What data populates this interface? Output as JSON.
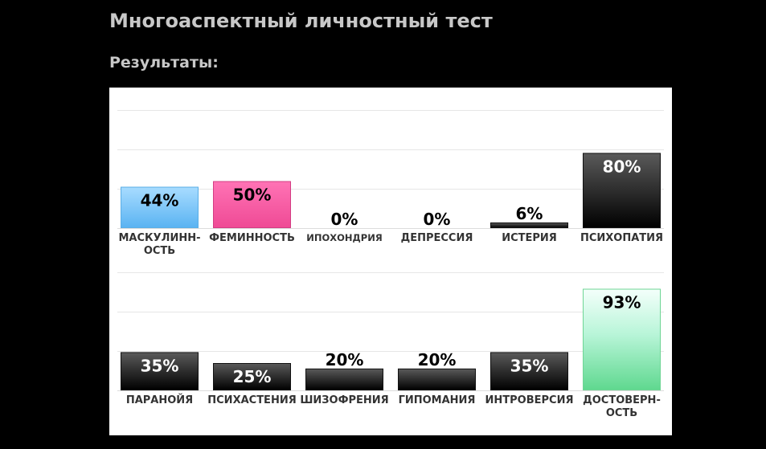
{
  "page": {
    "title": "Многоаспектный личностный тест",
    "subtitle": "Результаты:"
  },
  "chart_data": {
    "type": "bar",
    "rows": [
      {
        "categories": [
          [
            "МАСКУЛИНН-",
            "ОСТЬ"
          ],
          [
            "ФЕМИННОСТЬ"
          ],
          [
            "ИПОХОНДРИЯ"
          ],
          [
            "ДЕПРЕССИЯ"
          ],
          [
            "ИСТЕРИЯ"
          ],
          [
            "ПСИХОПАТИЯ"
          ]
        ],
        "values": [
          44,
          50,
          0,
          0,
          6,
          80
        ],
        "labels": [
          "44%",
          "50%",
          "0%",
          "0%",
          "6%",
          "80%"
        ],
        "styles": [
          "blue",
          "pink",
          "dark",
          "dark",
          "dark",
          "dark"
        ]
      },
      {
        "categories": [
          [
            "ПАРАНОЙЯ"
          ],
          [
            "ПСИХАСТЕНИЯ"
          ],
          [
            "ШИЗОФРЕНИЯ"
          ],
          [
            "ГИПОМАНИЯ"
          ],
          [
            "ИНТРОВЕРСИЯ"
          ],
          [
            "ДОСТОВЕРН-",
            "ОСТЬ"
          ]
        ],
        "values": [
          35,
          25,
          20,
          20,
          35,
          93
        ],
        "labels": [
          "35%",
          "25%",
          "20%",
          "20%",
          "35%",
          "93%"
        ],
        "styles": [
          "dark",
          "dark",
          "dark",
          "dark",
          "dark",
          "green"
        ]
      }
    ],
    "ylim": [
      0,
      100
    ],
    "grid": true
  }
}
